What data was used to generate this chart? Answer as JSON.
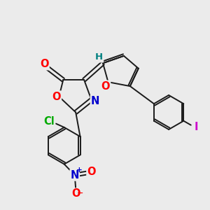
{
  "bg_color": "#ebebeb",
  "bond_color": "#1a1a1a",
  "bond_width": 1.4,
  "atom_colors": {
    "O": "#ff0000",
    "N": "#0000cd",
    "Cl": "#00aa00",
    "I": "#cc00cc",
    "H": "#008080",
    "C": "#1a1a1a"
  },
  "font_size_atom": 10.5
}
